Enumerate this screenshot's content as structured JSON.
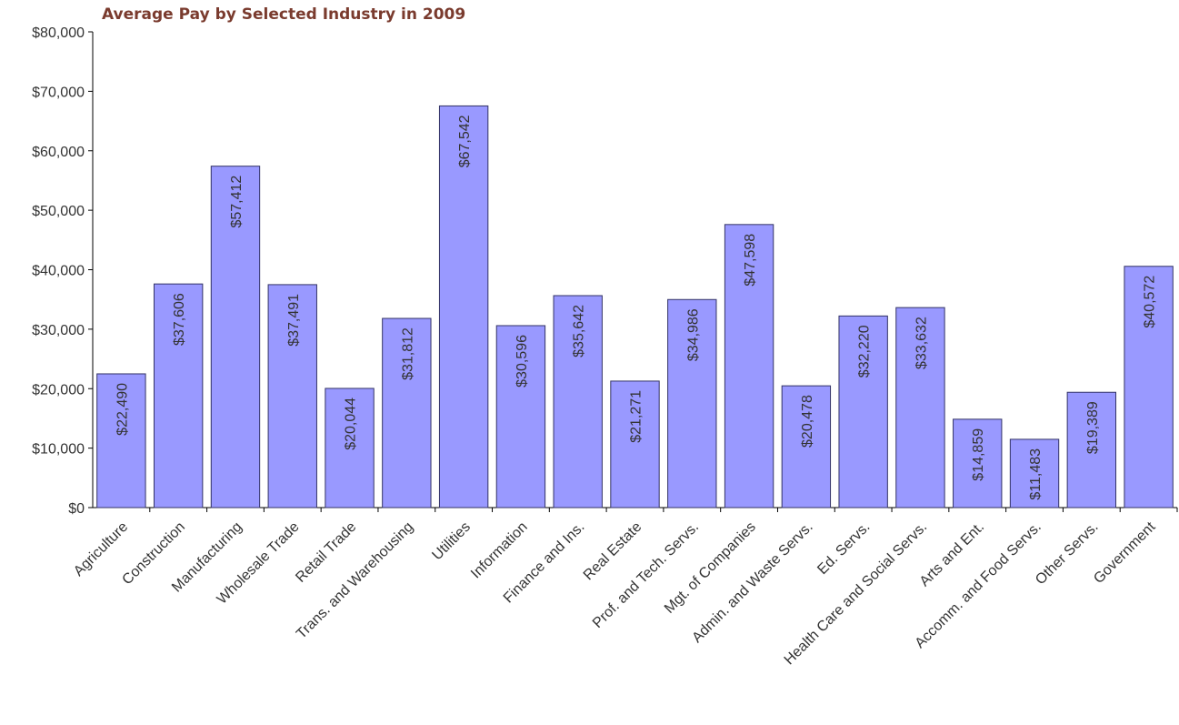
{
  "chart_data": {
    "type": "bar",
    "title": "Average Pay by Selected Industry in 2009",
    "xlabel": "",
    "ylabel": "",
    "ylim": [
      0,
      80000
    ],
    "yticks": [
      0,
      10000,
      20000,
      30000,
      40000,
      50000,
      60000,
      70000,
      80000
    ],
    "ytick_labels": [
      "$0",
      "$10,000",
      "$20,000",
      "$30,000",
      "$40,000",
      "$50,000",
      "$60,000",
      "$70,000",
      "$80,000"
    ],
    "grid": false,
    "legend": "none",
    "bar_color": "#9999ff",
    "bar_edge_color": "#333366",
    "categories": [
      "Agriculture",
      "Construction",
      "Manufacturing",
      "Wholesale Trade",
      "Retail Trade",
      "Trans. and Warehousing",
      "Utilities",
      "Information",
      "Finance and Ins.",
      "Real Estate",
      "Prof. and Tech. Servs.",
      "Mgt. of Companies",
      "Admin. and Waste Servs.",
      "Ed. Servs.",
      "Health Care and Social Servs.",
      "Arts and Ent.",
      "Accomm. and Food Servs.",
      "Other Servs.",
      "Government"
    ],
    "values": [
      22490,
      37606,
      57412,
      37491,
      20044,
      31812,
      67542,
      30596,
      35642,
      21271,
      34986,
      47598,
      20478,
      32220,
      33632,
      14859,
      11483,
      19389,
      40572
    ],
    "data_labels": [
      "$22,490",
      "$37,606",
      "$57,412",
      "$37,491",
      "$20,044",
      "$31,812",
      "$67,542",
      "$30,596",
      "$35,642",
      "$21,271",
      "$34,986",
      "$47,598",
      "$20,478",
      "$32,220",
      "$33,632",
      "$14,859",
      "$11,483",
      "$19,389",
      "$40,572"
    ]
  }
}
